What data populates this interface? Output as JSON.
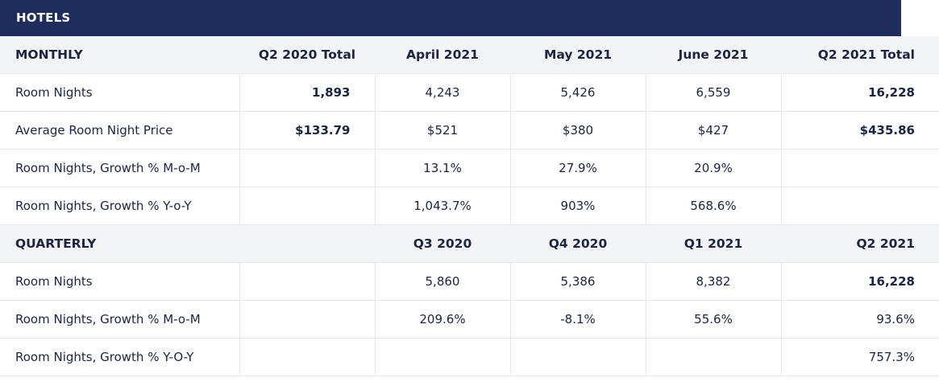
{
  "title": "HOTELS",
  "monthly": {
    "header": [
      "MONTHLY",
      "Q2 2020 Total",
      "April 2021",
      "May 2021",
      "June 2021",
      "Q2 2021 Total"
    ],
    "rows": [
      {
        "label": "Room Nights",
        "cells": [
          "1,893",
          "4,243",
          "5,426",
          "6,559",
          "16,228"
        ]
      },
      {
        "label": "Average Room Night Price",
        "cells": [
          "$133.79",
          "$521",
          "$380",
          "$427",
          "$435.86"
        ]
      },
      {
        "label": "Room Nights, Growth % M-o-M",
        "cells": [
          "",
          "13.1%",
          "27.9%",
          "20.9%",
          ""
        ]
      },
      {
        "label": "Room Nights, Growth % Y-o-Y",
        "cells": [
          "",
          "1,043.7%",
          "903%",
          "568.6%",
          ""
        ]
      }
    ]
  },
  "quarterly": {
    "header": [
      "QUARTERLY",
      "",
      "Q3 2020",
      "Q4 2020",
      "Q1 2021",
      "Q2 2021"
    ],
    "rows": [
      {
        "label": "Room Nights",
        "cells": [
          "",
          "5,860",
          "5,386",
          "8,382",
          "16,228"
        ]
      },
      {
        "label": "Room Nights, Growth % M-o-M",
        "cells": [
          "",
          "209.6%",
          "-8.1%",
          "55.6%",
          "93.6%"
        ]
      },
      {
        "label": "Room Nights, Growth % Y-O-Y",
        "cells": [
          "",
          "",
          "",
          "",
          "757.3%"
        ]
      }
    ]
  }
}
